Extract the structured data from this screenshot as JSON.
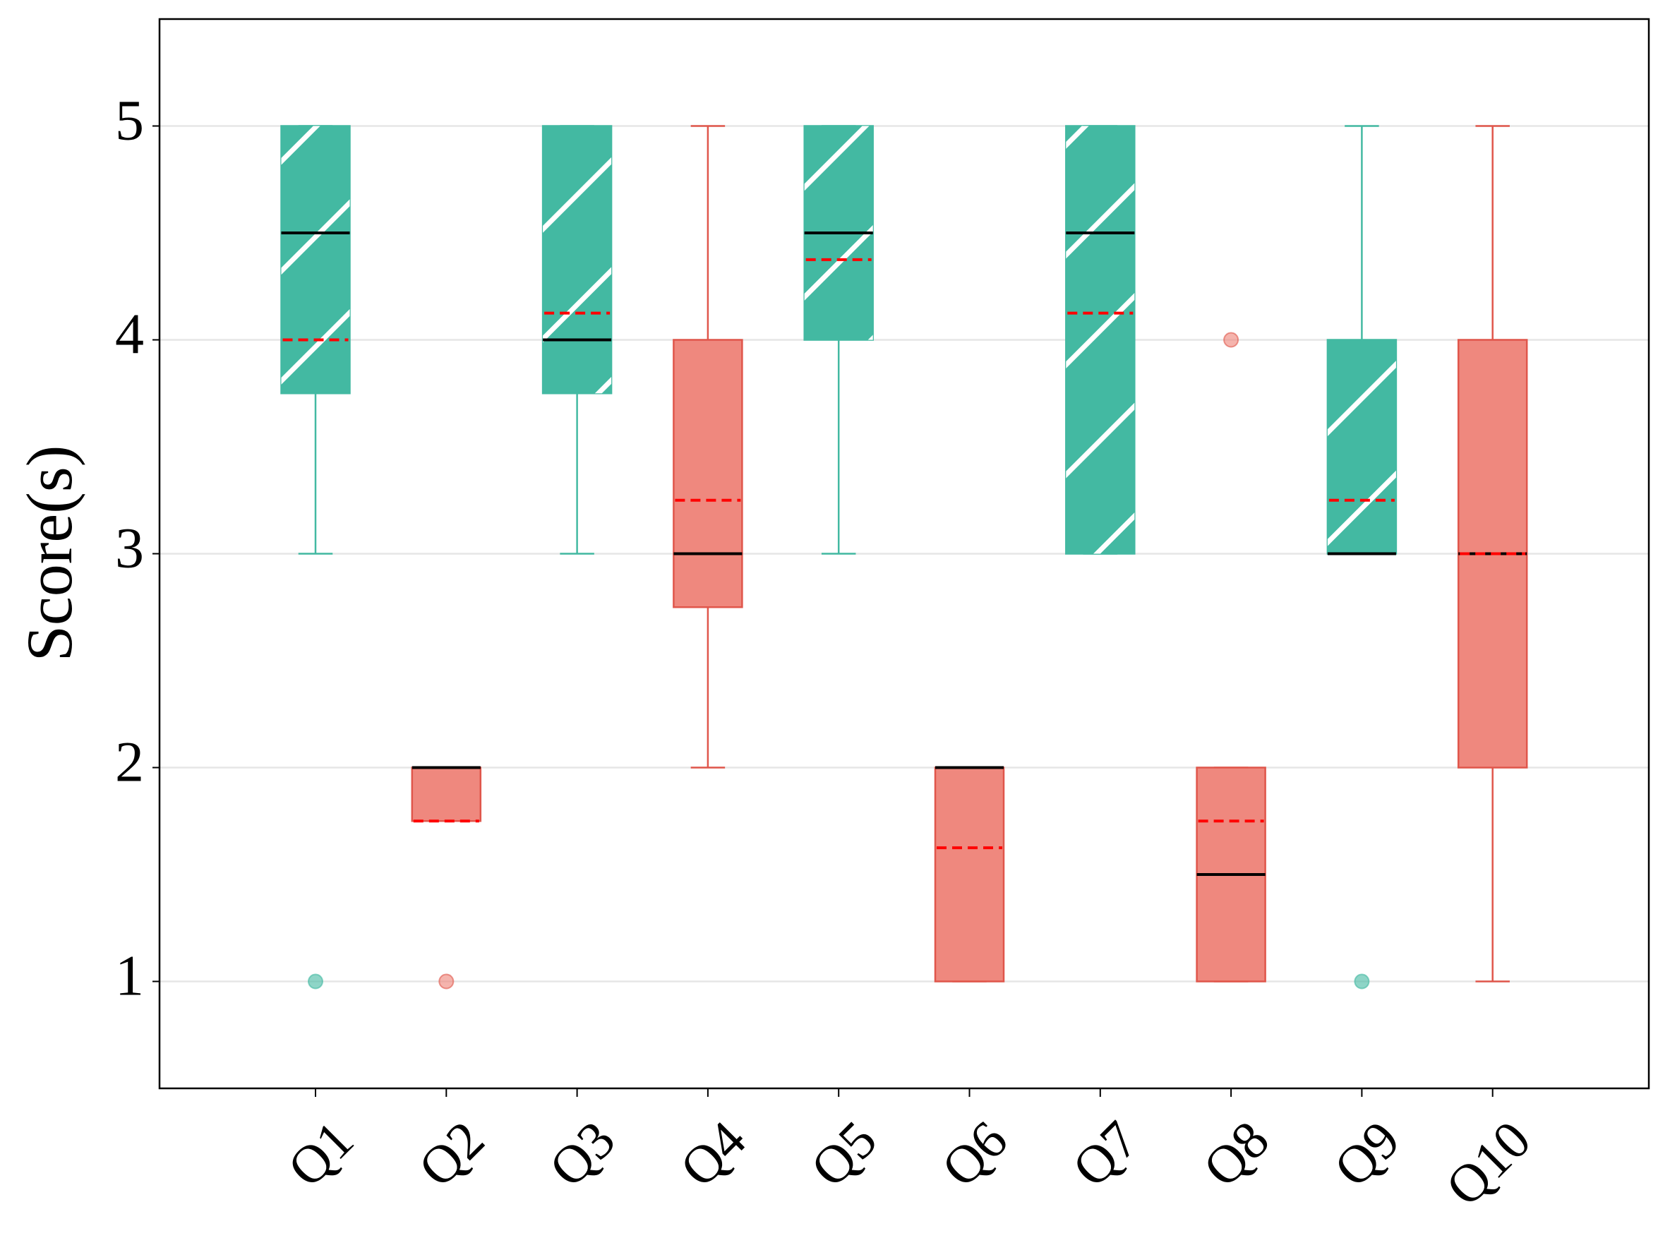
{
  "chart_data": {
    "type": "box",
    "ylabel": "Score(s)",
    "categories": [
      "Q1",
      "Q2",
      "Q3",
      "Q4",
      "Q5",
      "Q6",
      "Q7",
      "Q8",
      "Q9",
      "Q10"
    ],
    "boxes": [
      {
        "low": 3,
        "q1": 3.75,
        "median": 4.5,
        "q3": 5,
        "high": 5,
        "mean": 4,
        "outliers": [
          1
        ],
        "color": "#43b9a2",
        "whisker_color": "#43b9a2",
        "hatch": true
      },
      {
        "low": 1.75,
        "q1": 1.75,
        "median": 2,
        "q3": 2,
        "high": 2,
        "mean": 1.75,
        "outliers": [
          1
        ],
        "color": "#ee8277",
        "whisker_color": "#e0564b",
        "hatch": false
      },
      {
        "low": 3,
        "q1": 3.75,
        "median": 4,
        "q3": 5,
        "high": 5,
        "mean": 4.125,
        "outliers": [],
        "color": "#43b9a2",
        "whisker_color": "#43b9a2",
        "hatch": true
      },
      {
        "low": 2,
        "q1": 2.75,
        "median": 3,
        "q3": 4,
        "high": 5,
        "mean": 3.25,
        "outliers": [],
        "color": "#ee8277",
        "whisker_color": "#e0564b",
        "hatch": false
      },
      {
        "low": 3,
        "q1": 4,
        "median": 4.5,
        "q3": 5,
        "high": 5,
        "mean": 4.375,
        "outliers": [],
        "color": "#43b9a2",
        "whisker_color": "#43b9a2",
        "hatch": true
      },
      {
        "low": 1,
        "q1": 1,
        "median": 2,
        "q3": 2,
        "high": 2,
        "mean": 1.625,
        "outliers": [],
        "color": "#ee8277",
        "whisker_color": "#e0564b",
        "hatch": false
      },
      {
        "low": 3,
        "q1": 3,
        "median": 4.5,
        "q3": 5,
        "high": 5,
        "mean": 4.125,
        "outliers": [],
        "color": "#43b9a2",
        "whisker_color": "#43b9a2",
        "hatch": true
      },
      {
        "low": 1,
        "q1": 1,
        "median": 1.5,
        "q3": 2,
        "high": 2,
        "mean": 1.75,
        "outliers": [
          4
        ],
        "color": "#ee8277",
        "whisker_color": "#e0564b",
        "hatch": false
      },
      {
        "low": 3,
        "q1": 3,
        "median": 3,
        "q3": 4,
        "high": 5,
        "mean": 3.25,
        "outliers": [
          1
        ],
        "color": "#43b9a2",
        "whisker_color": "#43b9a2",
        "hatch": true
      },
      {
        "low": 1,
        "q1": 2,
        "median": 3,
        "q3": 4,
        "high": 5,
        "mean": 3,
        "outliers": [],
        "color": "#ee8277",
        "whisker_color": "#e0564b",
        "hatch": false
      }
    ],
    "median_color": "#000000",
    "mean_color": "#ff0000",
    "ylim": [
      0.5,
      5.5
    ],
    "yticks": [
      1,
      2,
      3,
      4,
      5
    ],
    "grid": true
  }
}
